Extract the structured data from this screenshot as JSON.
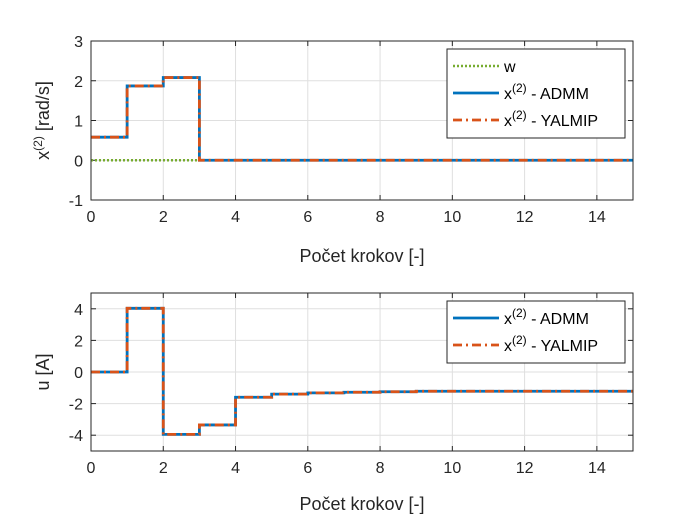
{
  "chart_data": [
    {
      "type": "line",
      "step": true,
      "xlabel": "Počet krokov [-]",
      "ylabel": {
        "base": "x",
        "sup": "(2)",
        "rest": " [rad/s]"
      },
      "xlim": [
        0,
        15
      ],
      "ylim": [
        -1,
        3
      ],
      "xticks": [
        "0",
        "2",
        "4",
        "6",
        "8",
        "10",
        "12",
        "14"
      ],
      "yticks": [
        "-1",
        "0",
        "1",
        "2",
        "3"
      ],
      "grid": true,
      "legend_position": "top-right",
      "x": [
        0,
        1,
        2,
        3,
        4,
        5,
        6,
        7,
        8,
        9,
        10,
        11,
        12,
        13,
        14
      ],
      "series": [
        {
          "name": "w",
          "color": "#77ac30",
          "style": "dotted",
          "values": [
            0,
            0,
            0,
            0,
            0,
            0,
            0,
            0,
            0,
            0,
            0,
            0,
            0,
            0,
            0
          ]
        },
        {
          "name": {
            "base": "x",
            "sup": "(2)",
            "rest": " - ADMM"
          },
          "color": "#0072bd",
          "style": "solid",
          "values": [
            0.58,
            1.87,
            2.08,
            0,
            0,
            0,
            0,
            0,
            0,
            0,
            0,
            0,
            0,
            0,
            0
          ]
        },
        {
          "name": {
            "base": "x",
            "sup": "(2)",
            "rest": " - YALMIP"
          },
          "color": "#d95319",
          "style": "dashdot",
          "values": [
            0.58,
            1.87,
            2.08,
            0,
            0,
            0,
            0,
            0,
            0,
            0,
            0,
            0,
            0,
            0,
            0
          ]
        }
      ]
    },
    {
      "type": "line",
      "step": true,
      "xlabel": "Počet krokov [-]",
      "ylabel": {
        "base": "u [A]",
        "sup": "",
        "rest": ""
      },
      "xlim": [
        0,
        15
      ],
      "ylim": [
        -5,
        5
      ],
      "xticks": [
        "0",
        "2",
        "4",
        "6",
        "8",
        "10",
        "12",
        "14"
      ],
      "yticks": [
        "-4",
        "-2",
        "0",
        "2",
        "4"
      ],
      "grid": true,
      "legend_position": "top-right",
      "x": [
        0,
        1,
        2,
        3,
        4,
        5,
        6,
        7,
        8,
        9,
        10,
        11,
        12,
        13,
        14
      ],
      "series": [
        {
          "name": {
            "base": "x",
            "sup": "(2)",
            "rest": " - ADMM"
          },
          "color": "#0072bd",
          "style": "solid",
          "values": [
            0,
            4.03,
            -3.95,
            -3.35,
            -1.6,
            -1.4,
            -1.32,
            -1.28,
            -1.25,
            -1.22,
            -1.22,
            -1.22,
            -1.22,
            -1.22,
            -1.22
          ]
        },
        {
          "name": {
            "base": "x",
            "sup": "(2)",
            "rest": " - YALMIP"
          },
          "color": "#d95319",
          "style": "dashdot",
          "values": [
            0,
            4.03,
            -3.95,
            -3.35,
            -1.6,
            -1.4,
            -1.32,
            -1.28,
            -1.25,
            -1.22,
            -1.22,
            -1.22,
            -1.22,
            -1.22,
            -1.22
          ]
        }
      ]
    }
  ]
}
